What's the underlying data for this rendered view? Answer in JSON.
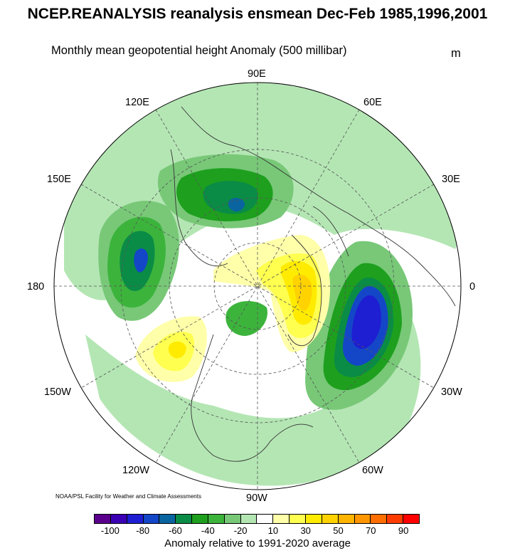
{
  "header": {
    "title": "NCEP.REANALYSIS reanalysis ensmean Dec-Feb 1985,1996,2001",
    "subtitle": "Monthly mean geopotential height Anomaly (500 millibar)",
    "units": "m"
  },
  "map": {
    "projection": "north-polar-stereographic",
    "longitude_labels": {
      "deg90E": "90E",
      "deg60E": "60E",
      "deg30E": "30E",
      "deg0": "0",
      "deg30W": "30W",
      "deg60W": "60W",
      "deg90W": "90W",
      "deg120W": "120W",
      "deg150W": "150W",
      "deg180": "180",
      "deg150E": "150E",
      "deg120E": "120E"
    },
    "credit": "NOAA/PSL Facility for Weather and Climate Assessments"
  },
  "colorbar": {
    "colors": [
      "#5a008c",
      "#3c00b4",
      "#1e1ed2",
      "#1446c8",
      "#0a64a0",
      "#0a8c46",
      "#1ea01e",
      "#3cb43c",
      "#78c878",
      "#b4e6b4",
      "#ffffff",
      "#ffffaa",
      "#ffff50",
      "#ffeb00",
      "#ffd200",
      "#ffb400",
      "#ff9600",
      "#ff6e00",
      "#ff3c00",
      "#ff0000"
    ],
    "tick_labels": [
      "-100",
      "-80",
      "-60",
      "-40",
      "-20",
      "10",
      "30",
      "50",
      "70",
      "90"
    ],
    "caption": "Anomaly relative to 1991-2020 average"
  }
}
